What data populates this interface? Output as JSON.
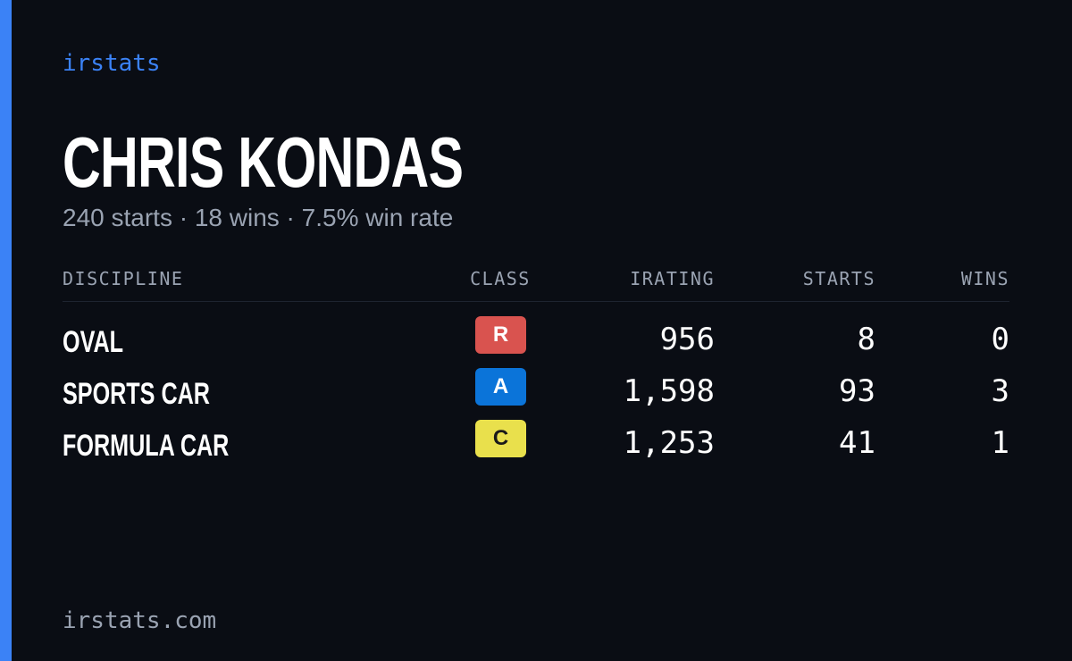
{
  "brand": "irstats",
  "profile": {
    "name": "CHRIS KONDAS",
    "summary": "240 starts · 18 wins · 7.5% win rate"
  },
  "table": {
    "headers": [
      "DISCIPLINE",
      "CLASS",
      "IRATING",
      "STARTS",
      "WINS"
    ],
    "rows": [
      [
        "OVAL",
        "R",
        "956",
        "8",
        "0"
      ],
      [
        "SPORTS CAR",
        "A",
        "1,598",
        "93",
        "3"
      ],
      [
        "FORMULA CAR",
        "C",
        "1,253",
        "41",
        "1"
      ]
    ]
  },
  "footer": "irstats.com"
}
